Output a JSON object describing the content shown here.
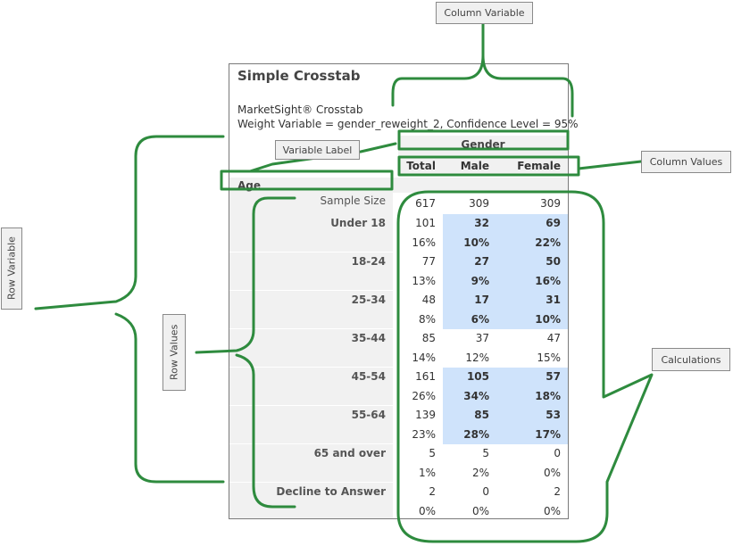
{
  "table": {
    "title": "Simple Crosstab",
    "subtitle1": "MarketSight® Crosstab",
    "subtitle2": "Weight Variable = gender_reweight_2, Confidence Level = 95%",
    "column_variable": "Gender",
    "row_variable": "Age",
    "columns": [
      "Total",
      "Male",
      "Female"
    ],
    "sample_size_label": "Sample Size",
    "sample_size": [
      "617",
      "309",
      "309"
    ],
    "rows": [
      {
        "label": "Under 18",
        "counts": [
          "101",
          "32",
          "69"
        ],
        "pcts": [
          "16%",
          "10%",
          "22%"
        ],
        "highlight": true
      },
      {
        "label": "18-24",
        "counts": [
          "77",
          "27",
          "50"
        ],
        "pcts": [
          "13%",
          "9%",
          "16%"
        ],
        "highlight": true
      },
      {
        "label": "25-34",
        "counts": [
          "48",
          "17",
          "31"
        ],
        "pcts": [
          "8%",
          "6%",
          "10%"
        ],
        "highlight": true
      },
      {
        "label": "35-44",
        "counts": [
          "85",
          "37",
          "47"
        ],
        "pcts": [
          "14%",
          "12%",
          "15%"
        ],
        "highlight": false
      },
      {
        "label": "45-54",
        "counts": [
          "161",
          "105",
          "57"
        ],
        "pcts": [
          "26%",
          "34%",
          "18%"
        ],
        "highlight": true
      },
      {
        "label": "55-64",
        "counts": [
          "139",
          "85",
          "53"
        ],
        "pcts": [
          "23%",
          "28%",
          "17%"
        ],
        "highlight": true
      },
      {
        "label": "65 and over",
        "counts": [
          "5",
          "5",
          "0"
        ],
        "pcts": [
          "1%",
          "2%",
          "0%"
        ],
        "highlight": false
      },
      {
        "label": "Decline to Answer",
        "counts": [
          "2",
          "0",
          "2"
        ],
        "pcts": [
          "0%",
          "0%",
          "0%"
        ],
        "highlight": false
      }
    ]
  },
  "callouts": {
    "column_variable": "Column Variable",
    "variable_label": "Variable Label",
    "column_values": "Column Values",
    "row_variable": "Row Variable",
    "row_values": "Row Values",
    "calculations": "Calculations"
  },
  "colors": {
    "annotation": "#2e8b3e",
    "highlight": "#cfe3fb",
    "header_bg": "#f1f1f1"
  }
}
